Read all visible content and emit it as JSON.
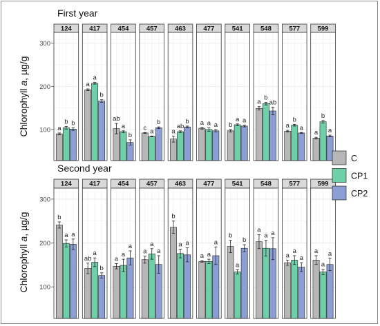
{
  "chart_data": {
    "type": "bar",
    "ylabel_pre": "Chlorophyll ",
    "ylabel_var": "a",
    "ylabel_post": ", µg/g",
    "yticks": [
      100,
      200,
      300
    ],
    "ylim": [
      28,
      325
    ],
    "grid": true,
    "legend_position": "right",
    "series": [
      {
        "name": "C",
        "color": "#b7b7b7"
      },
      {
        "name": "CP1",
        "color": "#6fcfa8"
      },
      {
        "name": "CP2",
        "color": "#8c9fd4"
      }
    ],
    "categories": [
      "124",
      "417",
      "454",
      "457",
      "463",
      "477",
      "541",
      "548",
      "577",
      "599"
    ],
    "panels": [
      {
        "title": "First year",
        "values": [
          [
            90,
            104,
            101
          ],
          [
            192,
            207,
            166
          ],
          [
            102,
            95,
            70
          ],
          [
            92,
            84,
            104
          ],
          [
            78,
            95,
            106
          ],
          [
            103,
            100,
            97
          ],
          [
            97,
            111,
            108
          ],
          [
            149,
            160,
            143
          ],
          [
            96,
            110,
            92
          ],
          [
            80,
            118,
            85
          ]
        ],
        "errors": [
          [
            2,
            3,
            3
          ],
          [
            2,
            2,
            3
          ],
          [
            12,
            2,
            6
          ],
          [
            1,
            1,
            2
          ],
          [
            7,
            2,
            2
          ],
          [
            2,
            4,
            3
          ],
          [
            3,
            2,
            2
          ],
          [
            4,
            3,
            9
          ],
          [
            2,
            2,
            1
          ],
          [
            2,
            3,
            2
          ]
        ],
        "letters": [
          [
            "a",
            "b",
            "b"
          ],
          [
            "a",
            "a",
            "b"
          ],
          [
            "ab",
            "a",
            "b"
          ],
          [
            "c",
            "a",
            "b"
          ],
          [
            "a",
            "ab",
            "b"
          ],
          [
            "a",
            "a",
            "a"
          ],
          [
            "b",
            "a",
            "a"
          ],
          [
            "a",
            "b",
            "ab"
          ],
          [
            "a",
            "b",
            "a"
          ],
          [
            "a",
            "b",
            "a"
          ]
        ]
      },
      {
        "title": "Second year",
        "values": [
          [
            241,
            199,
            197
          ],
          [
            142,
            156,
            126
          ],
          [
            147,
            149,
            166
          ],
          [
            162,
            175,
            151
          ],
          [
            236,
            176,
            173
          ],
          [
            158,
            158,
            171
          ],
          [
            192,
            134,
            188
          ],
          [
            203,
            188,
            187
          ],
          [
            155,
            161,
            145
          ],
          [
            161,
            134,
            151
          ]
        ],
        "errors": [
          [
            7,
            8,
            12
          ],
          [
            12,
            10,
            6
          ],
          [
            6,
            14,
            16
          ],
          [
            8,
            12,
            20
          ],
          [
            14,
            10,
            16
          ],
          [
            2,
            5,
            20
          ],
          [
            14,
            5,
            8
          ],
          [
            16,
            18,
            25
          ],
          [
            6,
            10,
            10
          ],
          [
            10,
            6,
            14
          ]
        ],
        "letters": [
          [
            "b",
            "a",
            "a"
          ],
          [
            "ab",
            "a",
            "b"
          ],
          [
            "a",
            "a",
            "a"
          ],
          [
            "a",
            "a",
            "a"
          ],
          [
            "b",
            "a",
            "a"
          ],
          [
            "a",
            "a",
            "a"
          ],
          [
            "b",
            "a",
            "b"
          ],
          [
            "a",
            "a",
            "a"
          ],
          [
            "a",
            "a",
            "a"
          ],
          [
            "a",
            "a",
            "a"
          ]
        ]
      }
    ]
  }
}
